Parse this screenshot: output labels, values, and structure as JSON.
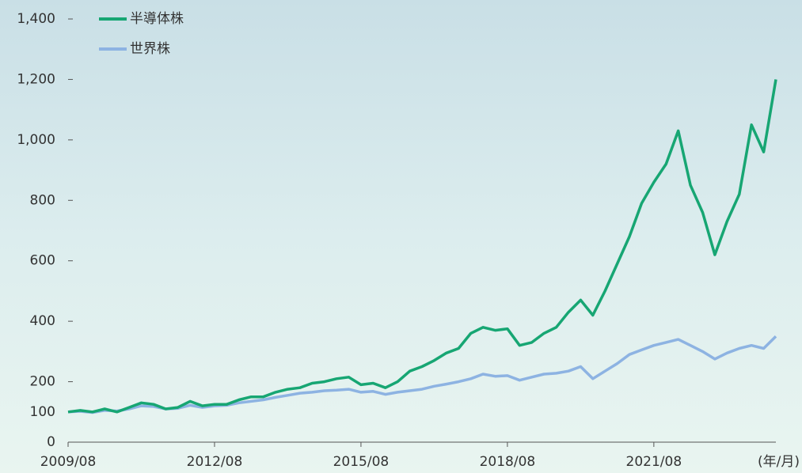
{
  "chart_data": {
    "type": "line",
    "xlabel": "(年/月)",
    "x": [
      "2009/08",
      "2009/11",
      "2010/02",
      "2010/05",
      "2010/08",
      "2010/11",
      "2011/02",
      "2011/05",
      "2011/08",
      "2011/11",
      "2012/02",
      "2012/05",
      "2012/08",
      "2012/11",
      "2013/02",
      "2013/05",
      "2013/08",
      "2013/11",
      "2014/02",
      "2014/05",
      "2014/08",
      "2014/11",
      "2015/02",
      "2015/05",
      "2015/08",
      "2015/11",
      "2016/02",
      "2016/05",
      "2016/08",
      "2016/11",
      "2017/02",
      "2017/05",
      "2017/08",
      "2017/11",
      "2018/02",
      "2018/05",
      "2018/08",
      "2018/11",
      "2019/02",
      "2019/05",
      "2019/08",
      "2019/11",
      "2020/02",
      "2020/05",
      "2020/08",
      "2020/11",
      "2021/02",
      "2021/05",
      "2021/08",
      "2021/11",
      "2022/02",
      "2022/05",
      "2022/08",
      "2022/11",
      "2023/02",
      "2023/05",
      "2023/08",
      "2023/11",
      "2024/02"
    ],
    "series": [
      {
        "name": "半導体株",
        "color": "#17a673",
        "values": [
          100,
          105,
          100,
          110,
          100,
          115,
          130,
          125,
          110,
          115,
          135,
          120,
          125,
          125,
          140,
          150,
          150,
          165,
          175,
          180,
          195,
          200,
          210,
          215,
          190,
          195,
          180,
          200,
          235,
          250,
          270,
          295,
          310,
          360,
          380,
          370,
          375,
          320,
          330,
          360,
          380,
          430,
          470,
          420,
          500,
          590,
          680,
          790,
          860,
          920,
          1030,
          850,
          760,
          620,
          730,
          820,
          1050,
          960,
          1200
        ]
      },
      {
        "name": "世界株",
        "color": "#8db3e2",
        "values": [
          100,
          102,
          98,
          105,
          103,
          110,
          120,
          118,
          110,
          112,
          122,
          115,
          120,
          122,
          130,
          135,
          140,
          148,
          155,
          162,
          165,
          170,
          172,
          175,
          165,
          168,
          158,
          165,
          170,
          175,
          185,
          192,
          200,
          210,
          225,
          218,
          220,
          205,
          215,
          225,
          228,
          235,
          250,
          210,
          235,
          260,
          290,
          305,
          320,
          330,
          340,
          320,
          300,
          275,
          295,
          310,
          320,
          310,
          350
        ]
      }
    ],
    "xlim": [
      "2009/08",
      "2024/02"
    ],
    "xticks": [
      "2009/08",
      "2012/08",
      "2015/08",
      "2018/08",
      "2021/08"
    ],
    "ylim": [
      0,
      1400
    ],
    "yticks": [
      0,
      100,
      200,
      400,
      600,
      800,
      {
        "value": 1000,
        "label": "1,000"
      },
      {
        "value": 1200,
        "label": "1,200"
      },
      {
        "value": 1400,
        "label": "1,400"
      }
    ],
    "legend": "top-left"
  }
}
